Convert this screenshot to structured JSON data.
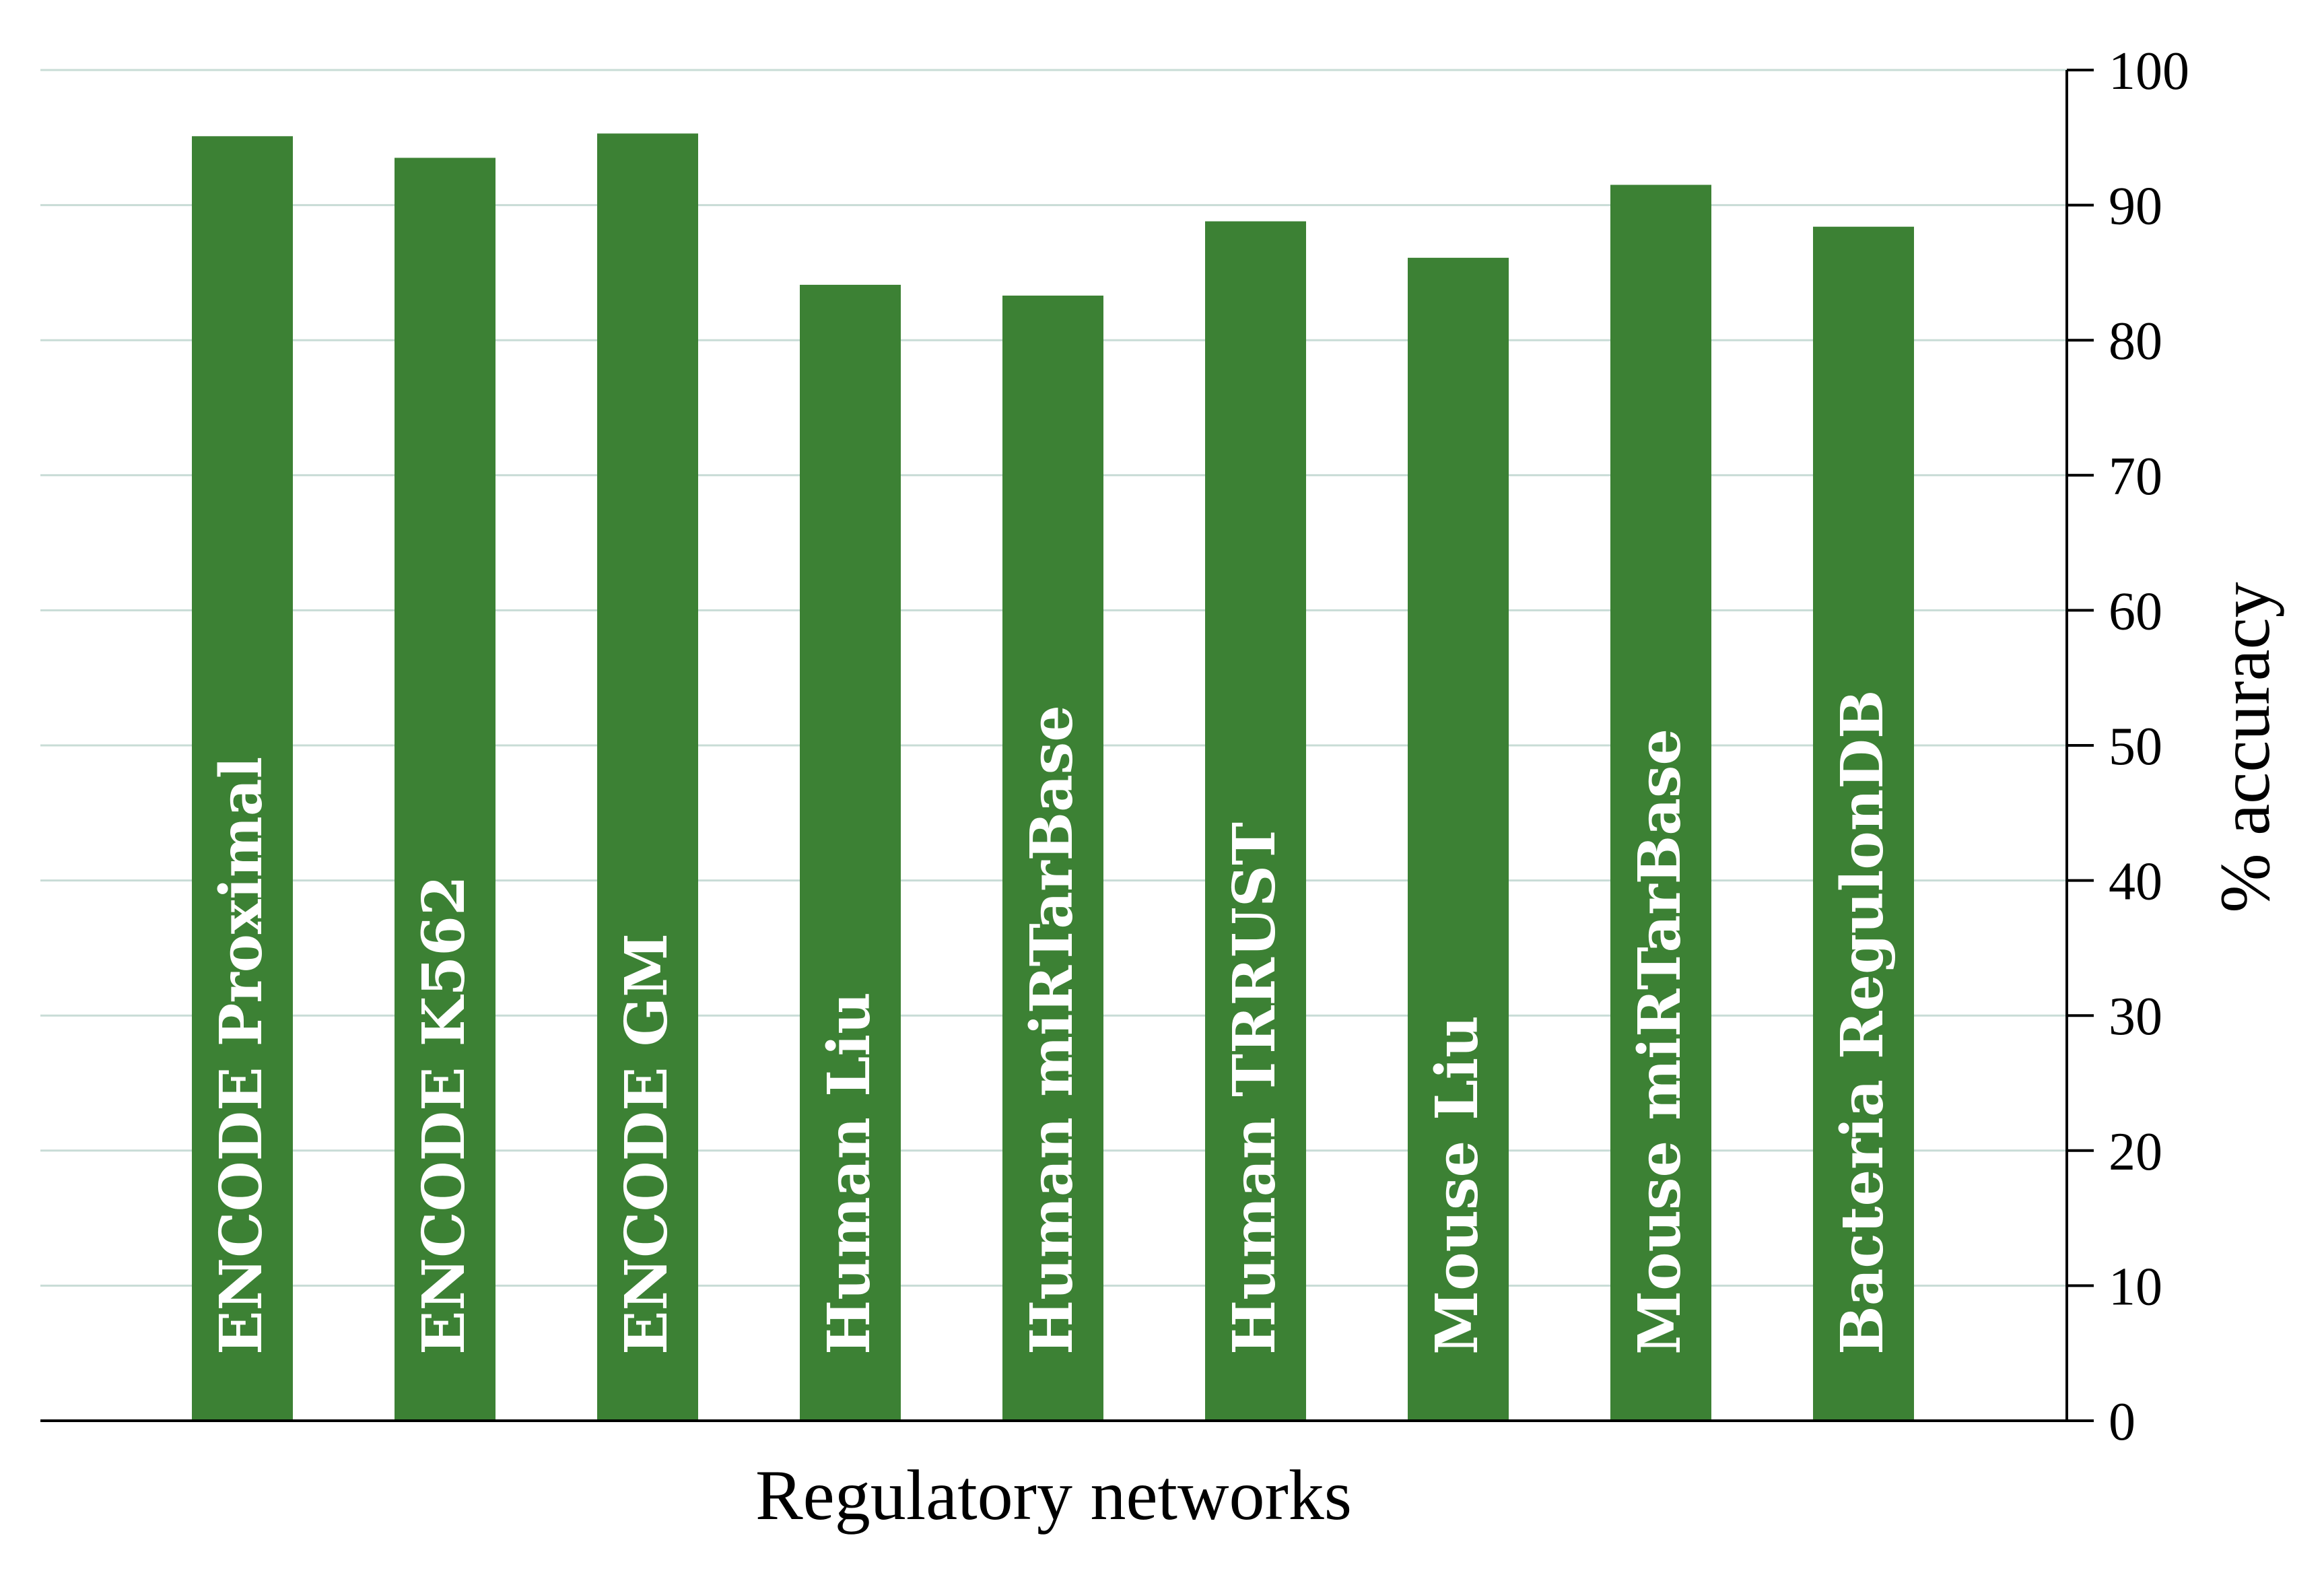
{
  "chart_data": {
    "type": "bar",
    "title": "",
    "xlabel": "Regulatory networks",
    "ylabel": "% accuracy",
    "y_axis_side": "right",
    "ylim": [
      0,
      100
    ],
    "yticks": [
      0,
      10,
      20,
      30,
      40,
      50,
      60,
      70,
      80,
      90,
      100
    ],
    "grid": true,
    "categories": [
      "ENCODE Proximal",
      "ENCODE K562",
      "ENCODE GM",
      "Human Liu",
      "Human miRTarBase",
      "Human TRRUST",
      "Mouse Liu",
      "Mouse miRTarBase",
      "Bacteria RegulonDB"
    ],
    "values": [
      95.1,
      93.5,
      95.3,
      84.1,
      83.3,
      88.8,
      86.1,
      91.5,
      88.4
    ],
    "category_labels_inside_bars": true,
    "colors": {
      "bar": "#3c8134",
      "bar_label": "#ffffff",
      "grid": "#c8dcd6",
      "axis": "#000000",
      "text": "#000000"
    }
  }
}
